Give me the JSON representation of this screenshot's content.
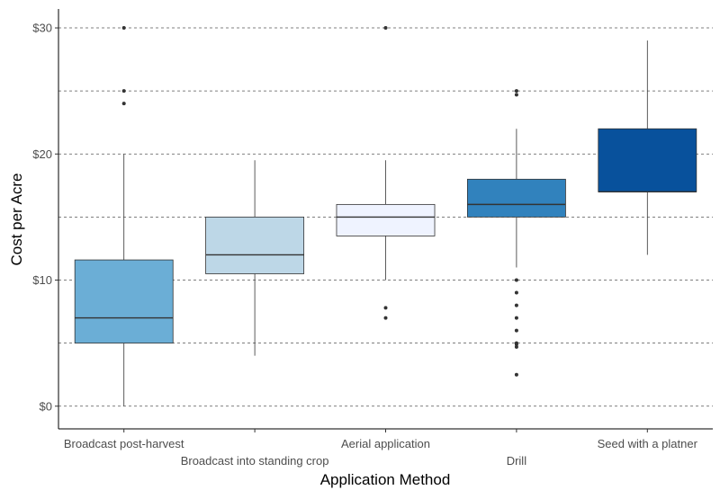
{
  "chart_data": {
    "type": "boxplot",
    "title": "",
    "xlabel": "Application Method",
    "ylabel": "Cost per Acre",
    "ylim": [
      -1.8,
      31.5
    ],
    "yticks": [
      0,
      10,
      20,
      30
    ],
    "ytick_labels": [
      "$0",
      "$10",
      "$20",
      "$30"
    ],
    "gridlines_y": [
      0,
      5,
      10,
      15,
      20,
      25,
      30
    ],
    "grid": "horizontal dashed",
    "legend": "none",
    "categories": [
      "Broadcast post-harvest",
      "Broadcast into standing crop",
      "Aerial application",
      "Drill",
      "Seed with a platner"
    ],
    "boxes": [
      {
        "category": "Broadcast post-harvest",
        "lower_whisker": 0,
        "q1": 5,
        "median": 7,
        "q3": 11.6,
        "upper_whisker": 20,
        "outliers": [
          24,
          25,
          30
        ],
        "fill": "#6BAED6"
      },
      {
        "category": "Broadcast into standing crop",
        "lower_whisker": 4,
        "q1": 10.5,
        "median": 12,
        "q3": 15,
        "upper_whisker": 19.5,
        "outliers": [],
        "fill": "#BDD7E7"
      },
      {
        "category": "Aerial application",
        "lower_whisker": 10,
        "q1": 13.5,
        "median": 15,
        "q3": 16,
        "upper_whisker": 19.5,
        "outliers": [
          7,
          7.8,
          30
        ],
        "fill": "#EFF3FF"
      },
      {
        "category": "Drill",
        "lower_whisker": 11,
        "q1": 15,
        "median": 16,
        "q3": 18,
        "upper_whisker": 22,
        "outliers": [
          2.5,
          4.7,
          4.9,
          5,
          6,
          7,
          8,
          9,
          10,
          24.7,
          25
        ],
        "fill": "#3182BD"
      },
      {
        "category": "Seed with a platner",
        "lower_whisker": 12,
        "q1": 17,
        "median": 17,
        "q3": 22,
        "upper_whisker": 29,
        "outliers": [],
        "fill": "#08519C"
      }
    ],
    "colors": {
      "grid": "#555555",
      "axis": "#000000",
      "whisker": "#333333",
      "median": "#333333"
    }
  }
}
